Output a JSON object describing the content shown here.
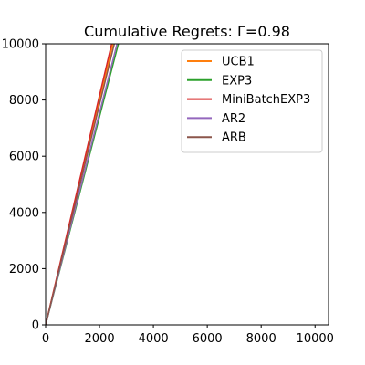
{
  "chart_data": {
    "type": "line",
    "title": "Cumulative Regrets: Γ=0.98",
    "xlabel": "",
    "ylabel": "",
    "xlim": [
      0,
      10500
    ],
    "ylim": [
      0,
      10000
    ],
    "xticks": [
      0,
      2000,
      4000,
      6000,
      8000,
      10000
    ],
    "yticks": [
      0,
      2000,
      4000,
      6000,
      8000,
      10000
    ],
    "grid": false,
    "legend_position": "upper-right",
    "series": [
      {
        "name": "UCB1",
        "color": "#ff7f0e",
        "x": [
          0,
          2500
        ],
        "y": [
          0,
          10000
        ]
      },
      {
        "name": "EXP3",
        "color": "#2ca02c",
        "x": [
          0,
          2700
        ],
        "y": [
          0,
          10000
        ]
      },
      {
        "name": "MiniBatchEXP3",
        "color": "#d62728",
        "x": [
          0,
          2450
        ],
        "y": [
          0,
          10000
        ]
      },
      {
        "name": "AR2",
        "color": "#9467bd",
        "x": [
          0,
          2650
        ],
        "y": [
          0,
          10000
        ]
      },
      {
        "name": "ARB",
        "color": "#8c564b",
        "x": [
          0,
          2550
        ],
        "y": [
          0,
          10000
        ]
      }
    ]
  }
}
